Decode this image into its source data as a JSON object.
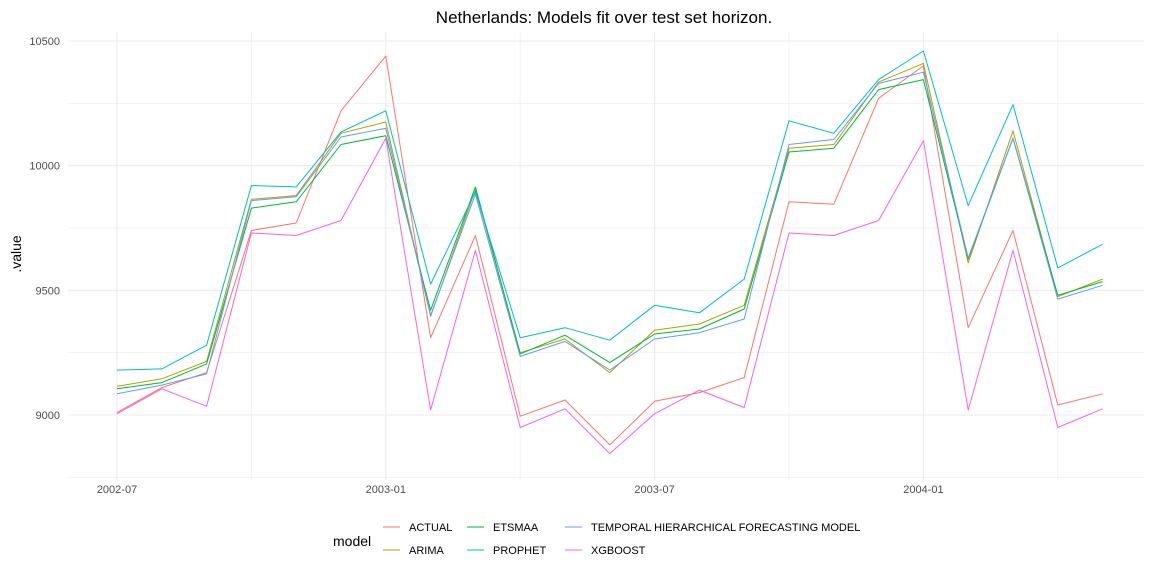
{
  "chart_data": {
    "type": "line",
    "title": "Netherlands: Models fit over test set horizon.",
    "xlabel": "",
    "ylabel": ".value",
    "x": [
      "2002-07",
      "2002-08",
      "2002-09",
      "2002-10",
      "2002-11",
      "2002-12",
      "2003-01",
      "2003-02",
      "2003-03",
      "2003-04",
      "2003-05",
      "2003-06",
      "2003-07",
      "2003-08",
      "2003-09",
      "2003-10",
      "2003-11",
      "2003-12",
      "2004-01",
      "2004-02",
      "2004-03",
      "2004-04",
      "2004-05"
    ],
    "x_ticks": [
      "2002-07",
      "2003-01",
      "2003-07",
      "2004-01"
    ],
    "y_ticks": [
      9000,
      9500,
      10000,
      10500
    ],
    "ylim": [
      8775,
      10550
    ],
    "grid": true,
    "legend": {
      "title": "model",
      "placement": "bottom"
    },
    "series": [
      {
        "name": "ACTUAL",
        "color": "#F8766D",
        "values": [
          9010,
          9110,
          9170,
          9740,
          9770,
          10220,
          10440,
          9310,
          9720,
          8995,
          9060,
          8880,
          9055,
          9090,
          9150,
          9855,
          9845,
          10270,
          10400,
          9350,
          9740,
          9040,
          9085
        ]
      },
      {
        "name": "ARIMA",
        "color": "#B79F00",
        "values": [
          9115,
          9145,
          9215,
          9865,
          9880,
          10130,
          10175,
          9395,
          9905,
          9250,
          9305,
          9170,
          9340,
          9365,
          9440,
          10070,
          10085,
          10335,
          10410,
          9610,
          10140,
          9475,
          9545
        ]
      },
      {
        "name": "ETSMAA",
        "color": "#00BA38",
        "values": [
          9105,
          9130,
          9205,
          9830,
          9855,
          10085,
          10120,
          9420,
          9915,
          9245,
          9320,
          9210,
          9325,
          9345,
          9425,
          10055,
          10070,
          10305,
          10345,
          9625,
          10110,
          9480,
          9535
        ]
      },
      {
        "name": "PROPHET",
        "color": "#00BFC4",
        "values": [
          9180,
          9185,
          9280,
          9920,
          9915,
          10135,
          10220,
          9525,
          9895,
          9310,
          9350,
          9300,
          9440,
          9410,
          9545,
          10180,
          10130,
          10345,
          10460,
          9840,
          10245,
          9590,
          9685
        ]
      },
      {
        "name": "TEMPORAL HIERARCHICAL FORECASTING MODEL",
        "color": "#619CFF",
        "values": [
          9085,
          9120,
          9165,
          9860,
          9875,
          10115,
          10150,
          9400,
          9885,
          9235,
          9295,
          9180,
          9305,
          9330,
          9385,
          10085,
          10105,
          10330,
          10375,
          9630,
          10110,
          9465,
          9520
        ]
      },
      {
        "name": "XGBOOST",
        "color": "#F564E3",
        "values": [
          9005,
          9105,
          9035,
          9730,
          9720,
          9780,
          10110,
          9020,
          9660,
          8950,
          9025,
          8845,
          9005,
          9100,
          9030,
          9730,
          9720,
          9780,
          10100,
          9020,
          9660,
          8950,
          9025
        ]
      }
    ]
  }
}
